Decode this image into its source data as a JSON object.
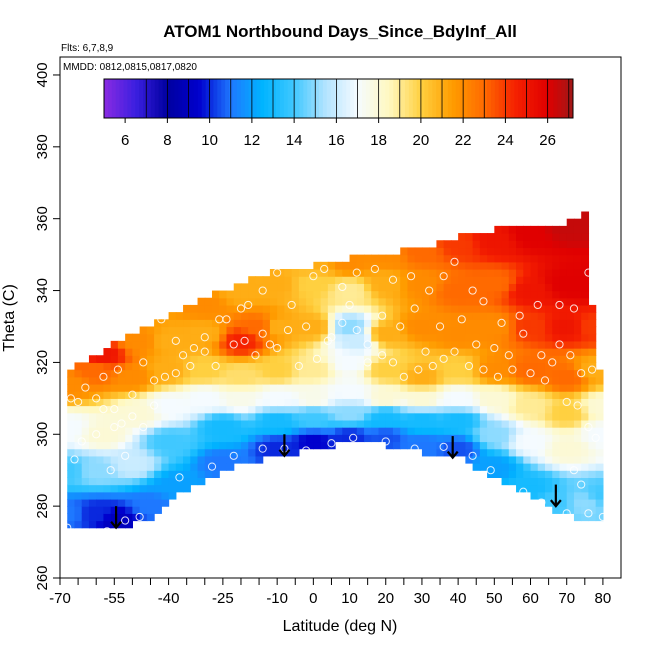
{
  "chart_data": {
    "type": "heatmap",
    "title": "ATOM1 Northbound Days_Since_BdyInf_All",
    "flights_label": "Flts: 6,7,8,9",
    "dates_label": "MMDD: 0812,0815,0817,0820",
    "xlabel": "Latitude (deg N)",
    "ylabel": "Theta (C)",
    "xlim": [
      -70,
      85
    ],
    "ylim": [
      260,
      405
    ],
    "x_ticks": [
      -70,
      -55,
      -40,
      -25,
      -10,
      0,
      10,
      20,
      30,
      40,
      50,
      60,
      70,
      80
    ],
    "x_minor_ticks": [
      -65,
      -60,
      -50,
      -45,
      -35,
      -30,
      -20,
      -15,
      -5,
      5,
      15,
      25,
      35,
      45,
      55,
      65,
      75
    ],
    "y_ticks": [
      260,
      280,
      300,
      320,
      340,
      360,
      380,
      400
    ],
    "colorbar": {
      "min": 5,
      "max": 27.2,
      "ticks": [
        6,
        8,
        10,
        12,
        14,
        16,
        18,
        20,
        22,
        24,
        26
      ],
      "stops": [
        {
          "v": 5.0,
          "c": "#8a2be2"
        },
        {
          "v": 6.5,
          "c": "#3b1fe0"
        },
        {
          "v": 8.0,
          "c": "#0000a0"
        },
        {
          "v": 9.5,
          "c": "#0000cd"
        },
        {
          "v": 11.0,
          "c": "#1e78ff"
        },
        {
          "v": 12.5,
          "c": "#00b4ff"
        },
        {
          "v": 14.0,
          "c": "#40c8ff"
        },
        {
          "v": 15.5,
          "c": "#b4e4ff"
        },
        {
          "v": 17.0,
          "c": "#f5fbff"
        },
        {
          "v": 18.5,
          "c": "#fff8c0"
        },
        {
          "v": 20.0,
          "c": "#ffd040"
        },
        {
          "v": 21.5,
          "c": "#ff9c00"
        },
        {
          "v": 23.0,
          "c": "#ff6a00"
        },
        {
          "v": 24.5,
          "c": "#f52000"
        },
        {
          "v": 26.0,
          "c": "#e00000"
        },
        {
          "v": 27.2,
          "c": "#a01818"
        }
      ]
    },
    "lower_boundary": [
      [
        -68,
        274
      ],
      [
        -54,
        274
      ],
      [
        -45,
        276
      ],
      [
        -38,
        283
      ],
      [
        -25,
        290
      ],
      [
        -10,
        294
      ],
      [
        0,
        296
      ],
      [
        10,
        298
      ],
      [
        20,
        297
      ],
      [
        30,
        295
      ],
      [
        40,
        294
      ],
      [
        50,
        288
      ],
      [
        60,
        283
      ],
      [
        67,
        279
      ],
      [
        72,
        277
      ],
      [
        80,
        277
      ]
    ],
    "upper_boundary": [
      [
        -68,
        312
      ],
      [
        -67,
        318
      ],
      [
        -60,
        322
      ],
      [
        -50,
        328
      ],
      [
        -40,
        333
      ],
      [
        -30,
        338
      ],
      [
        -20,
        342
      ],
      [
        -10,
        346
      ],
      [
        0,
        347
      ],
      [
        10,
        349
      ],
      [
        20,
        350
      ],
      [
        30,
        352
      ],
      [
        40,
        355
      ],
      [
        50,
        357
      ],
      [
        60,
        358
      ],
      [
        70,
        359
      ],
      [
        75,
        362
      ],
      [
        76,
        345
      ],
      [
        78,
        320
      ],
      [
        80,
        310
      ],
      [
        80,
        300
      ]
    ],
    "field_points": [
      {
        "x": -68,
        "y": 278,
        "v": 11
      },
      {
        "x": -60,
        "y": 278,
        "v": 10
      },
      {
        "x": -54,
        "y": 276,
        "v": 9
      },
      {
        "x": -45,
        "y": 280,
        "v": 11
      },
      {
        "x": -38,
        "y": 286,
        "v": 12
      },
      {
        "x": -25,
        "y": 292,
        "v": 11
      },
      {
        "x": -10,
        "y": 296,
        "v": 10
      },
      {
        "x": 0,
        "y": 298,
        "v": 9.5
      },
      {
        "x": 10,
        "y": 299,
        "v": 10
      },
      {
        "x": 20,
        "y": 299,
        "v": 10.5
      },
      {
        "x": 30,
        "y": 297,
        "v": 11
      },
      {
        "x": 40,
        "y": 296,
        "v": 10.5
      },
      {
        "x": 50,
        "y": 291,
        "v": 12
      },
      {
        "x": 60,
        "y": 285,
        "v": 13
      },
      {
        "x": 67,
        "y": 281,
        "v": 14
      },
      {
        "x": 75,
        "y": 281,
        "v": 15
      },
      {
        "x": 80,
        "y": 283,
        "v": 14
      },
      {
        "x": -68,
        "y": 290,
        "v": 14
      },
      {
        "x": -60,
        "y": 290,
        "v": 15
      },
      {
        "x": -50,
        "y": 292,
        "v": 16
      },
      {
        "x": -40,
        "y": 298,
        "v": 14
      },
      {
        "x": -25,
        "y": 302,
        "v": 13
      },
      {
        "x": -10,
        "y": 304,
        "v": 13
      },
      {
        "x": 0,
        "y": 305,
        "v": 14
      },
      {
        "x": 10,
        "y": 306,
        "v": 15
      },
      {
        "x": 20,
        "y": 305,
        "v": 13
      },
      {
        "x": 30,
        "y": 304,
        "v": 13
      },
      {
        "x": 40,
        "y": 304,
        "v": 13
      },
      {
        "x": 50,
        "y": 300,
        "v": 15
      },
      {
        "x": 60,
        "y": 298,
        "v": 17
      },
      {
        "x": 70,
        "y": 296,
        "v": 18
      },
      {
        "x": 80,
        "y": 300,
        "v": 17
      },
      {
        "x": -68,
        "y": 302,
        "v": 17
      },
      {
        "x": -58,
        "y": 300,
        "v": 18
      },
      {
        "x": -48,
        "y": 306,
        "v": 18
      },
      {
        "x": -40,
        "y": 308,
        "v": 17
      },
      {
        "x": -30,
        "y": 310,
        "v": 17
      },
      {
        "x": -20,
        "y": 310,
        "v": 17.5
      },
      {
        "x": -10,
        "y": 310,
        "v": 17
      },
      {
        "x": 0,
        "y": 310,
        "v": 17.5
      },
      {
        "x": 10,
        "y": 312,
        "v": 17
      },
      {
        "x": 20,
        "y": 310,
        "v": 18
      },
      {
        "x": 30,
        "y": 310,
        "v": 18
      },
      {
        "x": 40,
        "y": 310,
        "v": 17
      },
      {
        "x": 50,
        "y": 310,
        "v": 18
      },
      {
        "x": 60,
        "y": 308,
        "v": 19
      },
      {
        "x": 70,
        "y": 306,
        "v": 20
      },
      {
        "x": 80,
        "y": 308,
        "v": 18
      },
      {
        "x": -68,
        "y": 314,
        "v": 22
      },
      {
        "x": -60,
        "y": 318,
        "v": 23
      },
      {
        "x": -50,
        "y": 316,
        "v": 22
      },
      {
        "x": -40,
        "y": 318,
        "v": 21
      },
      {
        "x": -30,
        "y": 318,
        "v": 20
      },
      {
        "x": -20,
        "y": 316,
        "v": 19.5
      },
      {
        "x": -10,
        "y": 318,
        "v": 20
      },
      {
        "x": 0,
        "y": 318,
        "v": 19
      },
      {
        "x": 10,
        "y": 320,
        "v": 17
      },
      {
        "x": 20,
        "y": 318,
        "v": 20
      },
      {
        "x": 30,
        "y": 316,
        "v": 21
      },
      {
        "x": 40,
        "y": 318,
        "v": 20
      },
      {
        "x": 50,
        "y": 318,
        "v": 22
      },
      {
        "x": 60,
        "y": 318,
        "v": 23
      },
      {
        "x": 70,
        "y": 316,
        "v": 23
      },
      {
        "x": 78,
        "y": 318,
        "v": 21
      },
      {
        "x": -58,
        "y": 322,
        "v": 25
      },
      {
        "x": -48,
        "y": 326,
        "v": 22
      },
      {
        "x": -40,
        "y": 326,
        "v": 21
      },
      {
        "x": -30,
        "y": 328,
        "v": 21
      },
      {
        "x": -20,
        "y": 326,
        "v": 24.5
      },
      {
        "x": -15,
        "y": 330,
        "v": 23
      },
      {
        "x": -10,
        "y": 330,
        "v": 21
      },
      {
        "x": 0,
        "y": 330,
        "v": 21
      },
      {
        "x": 10,
        "y": 330,
        "v": 15
      },
      {
        "x": 12,
        "y": 326,
        "v": 16
      },
      {
        "x": 20,
        "y": 328,
        "v": 21
      },
      {
        "x": 30,
        "y": 330,
        "v": 22
      },
      {
        "x": 40,
        "y": 328,
        "v": 22
      },
      {
        "x": 50,
        "y": 330,
        "v": 22
      },
      {
        "x": 60,
        "y": 330,
        "v": 24
      },
      {
        "x": 70,
        "y": 330,
        "v": 25
      },
      {
        "x": 77,
        "y": 330,
        "v": 24
      },
      {
        "x": -30,
        "y": 336,
        "v": 22
      },
      {
        "x": -20,
        "y": 340,
        "v": 21
      },
      {
        "x": -10,
        "y": 342,
        "v": 21
      },
      {
        "x": 0,
        "y": 342,
        "v": 20
      },
      {
        "x": 10,
        "y": 340,
        "v": 19
      },
      {
        "x": 20,
        "y": 342,
        "v": 21
      },
      {
        "x": 30,
        "y": 342,
        "v": 22
      },
      {
        "x": 40,
        "y": 340,
        "v": 23
      },
      {
        "x": 50,
        "y": 342,
        "v": 23
      },
      {
        "x": 60,
        "y": 340,
        "v": 25
      },
      {
        "x": 70,
        "y": 342,
        "v": 26
      },
      {
        "x": 76,
        "y": 342,
        "v": 26
      },
      {
        "x": 0,
        "y": 348,
        "v": 21
      },
      {
        "x": 10,
        "y": 348,
        "v": 22
      },
      {
        "x": 20,
        "y": 350,
        "v": 22
      },
      {
        "x": 30,
        "y": 351,
        "v": 23
      },
      {
        "x": 40,
        "y": 353,
        "v": 24
      },
      {
        "x": 50,
        "y": 354,
        "v": 25
      },
      {
        "x": 60,
        "y": 356,
        "v": 26
      },
      {
        "x": 70,
        "y": 358,
        "v": 26.5
      },
      {
        "x": 75,
        "y": 360,
        "v": 26.5
      }
    ],
    "obs_points": [
      [
        -68,
        274
      ],
      [
        -62,
        272
      ],
      [
        -57,
        273
      ],
      [
        -52,
        276
      ],
      [
        -48,
        277
      ],
      [
        -37,
        288
      ],
      [
        -28,
        291
      ],
      [
        -22,
        294
      ],
      [
        -14,
        296
      ],
      [
        -8,
        296
      ],
      [
        -2,
        295.5
      ],
      [
        5,
        297.5
      ],
      [
        11,
        299
      ],
      [
        20,
        298
      ],
      [
        28,
        296
      ],
      [
        36,
        296.5
      ],
      [
        44,
        294
      ],
      [
        49,
        290
      ],
      [
        58,
        284
      ],
      [
        63,
        281
      ],
      [
        70,
        278
      ],
      [
        76,
        278
      ],
      [
        80,
        277
      ],
      [
        -66,
        293
      ],
      [
        -64,
        298
      ],
      [
        -60,
        300
      ],
      [
        -55,
        302
      ],
      [
        -53,
        303
      ],
      [
        -50,
        305
      ],
      [
        -56,
        290
      ],
      [
        -52,
        294
      ],
      [
        -47,
        302
      ],
      [
        -44,
        315
      ],
      [
        -41,
        316
      ],
      [
        -38,
        317
      ],
      [
        -34,
        319
      ],
      [
        -30,
        323
      ],
      [
        -27,
        319
      ],
      [
        -22,
        325
      ],
      [
        -19,
        326
      ],
      [
        -14,
        328
      ],
      [
        -10,
        324
      ],
      [
        -4,
        319
      ],
      [
        1,
        321
      ],
      [
        4,
        326
      ],
      [
        8,
        331
      ],
      [
        12,
        329
      ],
      [
        15,
        325
      ],
      [
        19,
        322
      ],
      [
        22,
        320
      ],
      [
        25,
        316
      ],
      [
        29,
        318
      ],
      [
        33,
        319
      ],
      [
        36,
        321
      ],
      [
        39,
        323
      ],
      [
        43,
        319
      ],
      [
        47,
        318
      ],
      [
        51,
        316
      ],
      [
        55,
        318
      ],
      [
        60,
        317
      ],
      [
        64,
        315
      ],
      [
        70,
        309
      ],
      [
        73,
        308
      ],
      [
        76,
        302
      ],
      [
        78,
        299
      ],
      [
        72,
        290
      ],
      [
        74,
        286
      ],
      [
        -60,
        310
      ],
      [
        -58,
        307
      ],
      [
        -55,
        307
      ],
      [
        -50,
        311
      ],
      [
        -65,
        309
      ],
      [
        -30,
        327
      ],
      [
        -24,
        332
      ],
      [
        -18,
        336
      ],
      [
        -14,
        340
      ],
      [
        -10,
        345
      ],
      [
        -6,
        336
      ],
      [
        -2,
        330
      ],
      [
        3,
        346
      ],
      [
        8,
        341
      ],
      [
        12,
        345
      ],
      [
        17,
        346
      ],
      [
        22,
        343
      ],
      [
        27,
        344
      ],
      [
        32,
        340
      ],
      [
        36,
        344
      ],
      [
        39,
        348
      ],
      [
        44,
        340
      ],
      [
        47,
        337
      ],
      [
        52,
        331
      ],
      [
        57,
        333
      ],
      [
        62,
        336
      ],
      [
        68,
        336
      ],
      [
        72,
        335
      ],
      [
        76,
        345
      ],
      [
        -42,
        332
      ],
      [
        -38,
        326
      ],
      [
        -33,
        324
      ],
      [
        -26,
        332
      ],
      [
        -20,
        335
      ],
      [
        -16,
        322
      ],
      [
        -12,
        325
      ],
      [
        -7,
        329
      ],
      [
        0,
        344
      ],
      [
        5,
        327
      ],
      [
        10,
        336
      ],
      [
        15,
        320
      ],
      [
        19,
        333
      ],
      [
        24,
        330
      ],
      [
        28,
        335
      ],
      [
        31,
        323
      ],
      [
        35,
        330
      ],
      [
        41,
        332
      ],
      [
        45,
        325
      ],
      [
        50,
        324
      ],
      [
        54,
        322
      ],
      [
        58,
        328
      ],
      [
        63,
        322
      ],
      [
        66,
        320
      ],
      [
        68,
        325
      ],
      [
        71,
        322
      ],
      [
        74,
        317
      ],
      [
        77,
        318
      ],
      [
        -67,
        310
      ],
      [
        -63,
        313
      ],
      [
        -58,
        316
      ],
      [
        -54,
        318
      ],
      [
        -47,
        320
      ],
      [
        -36,
        322
      ],
      [
        -44,
        308
      ]
    ],
    "arrows": [
      [
        -54.5,
        280
      ],
      [
        -8,
        300
      ],
      [
        38.5,
        299.5
      ],
      [
        67,
        286
      ]
    ]
  }
}
